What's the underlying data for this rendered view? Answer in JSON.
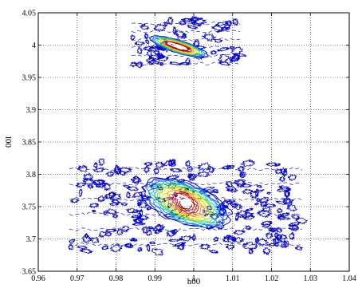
{
  "chart_data": {
    "type": "contour",
    "title": "",
    "xlabel": "h00",
    "ylabel": "00l",
    "xlim": [
      0.96,
      1.04
    ],
    "ylim": [
      3.65,
      4.05
    ],
    "xticks": [
      "0.96",
      "0.97",
      "0.98",
      "0.99",
      "1",
      "1.01",
      "1.02",
      "1.03",
      "1.04"
    ],
    "yticks": [
      "3.65",
      "3.7",
      "3.75",
      "3.8",
      "3.85",
      "3.9",
      "3.95",
      "4",
      "4.05"
    ],
    "grid": true,
    "grid_style": "dotted",
    "colormap": [
      "#0000c8",
      "#1e78ff",
      "#00c8c8",
      "#64e600",
      "#e6e600",
      "#ff8c00",
      "#e60000",
      "#8b0000"
    ],
    "peaks": [
      {
        "center_h": 0.9975,
        "center_l": 3.7575,
        "scan_h_range": [
          0.968,
          1.028
        ],
        "scan_l_range": [
          3.68,
          3.82
        ]
      },
      {
        "center_h": 0.9965,
        "center_l": 4.0,
        "scan_h_range": [
          0.984,
          1.012
        ],
        "scan_l_range": [
          3.965,
          4.04
        ]
      }
    ]
  }
}
